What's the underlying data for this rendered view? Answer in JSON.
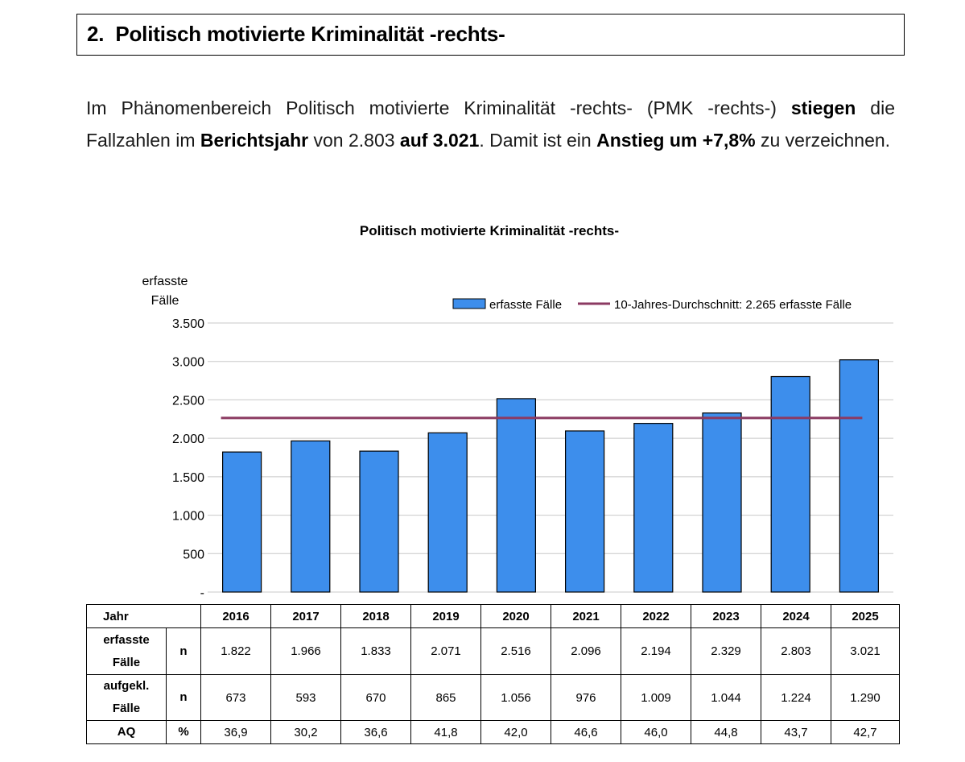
{
  "heading": {
    "number": "2.",
    "title": "Politisch motivierte Kriminalität -rechts-"
  },
  "intro": {
    "p1": "Im Phänomenbereich Politisch motivierte Kriminalität -rechts- (PMK -rechts-) ",
    "b1": "stiegen",
    "p2": " die Fallzahlen im ",
    "b2": "Berichtsjahr",
    "p3": " von 2.803 ",
    "b3": "auf 3.021",
    "p4": ". Damit ist ein ",
    "b4": "Anstieg um +7,8%",
    "p5": " zu verzeichnen."
  },
  "chart_data": {
    "type": "bar",
    "title": "Politisch motivierte Kriminalität -rechts-",
    "ylabel": "erfasste Fälle",
    "xlabel": "",
    "categories": [
      "2016",
      "2017",
      "2018",
      "2019",
      "2020",
      "2021",
      "2022",
      "2023",
      "2024",
      "2025"
    ],
    "series": [
      {
        "name": "erfasste Fälle",
        "values": [
          1822,
          1966,
          1833,
          2071,
          2516,
          2096,
          2194,
          2329,
          2803,
          3021
        ],
        "color": "#3d8eec"
      }
    ],
    "reference_line": {
      "name": "10-Jahres-Durchschnitt: 2.265 erfasste Fälle",
      "value": 2265,
      "color": "#8b3a62"
    },
    "ylim": [
      0,
      3500
    ],
    "yticks": [
      0,
      500,
      1000,
      1500,
      2000,
      2500,
      3000,
      3500
    ],
    "ytick_labels": [
      "-",
      "500",
      "1.000",
      "1.500",
      "2.000",
      "2.500",
      "3.000",
      "3.500"
    ],
    "grid": true,
    "legend_position": "top-right"
  },
  "table": {
    "header_label": "Jahr",
    "years": [
      "2016",
      "2017",
      "2018",
      "2019",
      "2020",
      "2021",
      "2022",
      "2023",
      "2024",
      "2025"
    ],
    "rows": [
      {
        "label1": "erfasste",
        "label2": "Fälle",
        "unit": "n",
        "values": [
          "1.822",
          "1.966",
          "1.833",
          "2.071",
          "2.516",
          "2.096",
          "2.194",
          "2.329",
          "2.803",
          "3.021"
        ]
      },
      {
        "label1": "aufgekl.",
        "label2": "Fälle",
        "unit": "n",
        "values": [
          "673",
          "593",
          "670",
          "865",
          "1.056",
          "976",
          "1.009",
          "1.044",
          "1.224",
          "1.290"
        ]
      },
      {
        "label1": "AQ",
        "label2": "",
        "unit": "%",
        "values": [
          "36,9",
          "30,2",
          "36,6",
          "41,8",
          "42,0",
          "46,6",
          "46,0",
          "44,8",
          "43,7",
          "42,7"
        ]
      }
    ]
  }
}
